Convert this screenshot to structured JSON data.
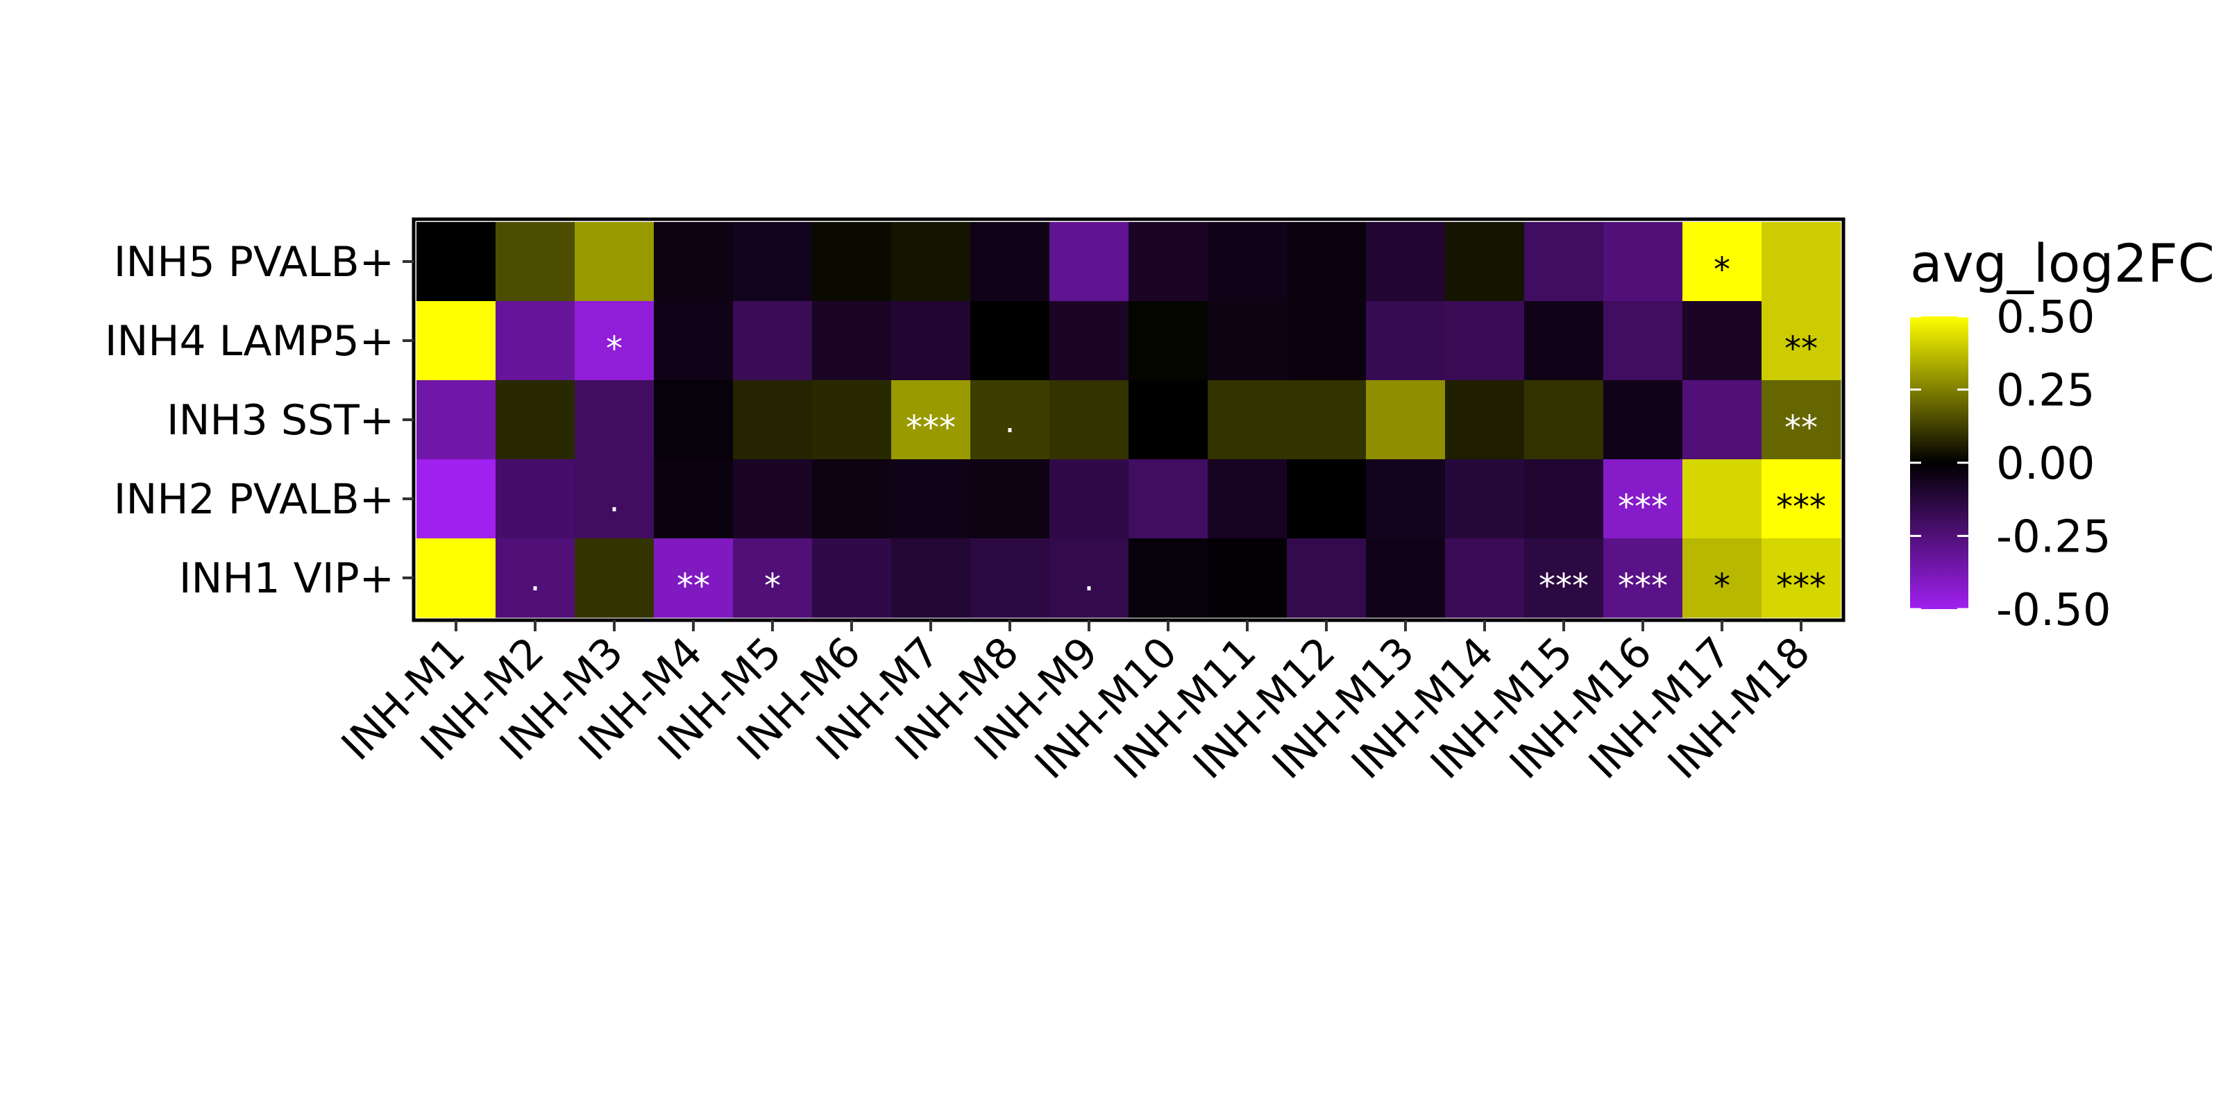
{
  "chart_data": {
    "type": "heatmap",
    "x_categories": [
      "INH-M1",
      "INH-M2",
      "INH-M3",
      "INH-M4",
      "INH-M5",
      "INH-M6",
      "INH-M7",
      "INH-M8",
      "INH-M9",
      "INH-M10",
      "INH-M11",
      "INH-M12",
      "INH-M13",
      "INH-M14",
      "INH-M15",
      "INH-M16",
      "INH-M17",
      "INH-M18"
    ],
    "y_categories": [
      "INH5 PVALB+",
      "INH4 LAMP5+",
      "INH3 SST+",
      "INH2 PVALB+",
      "INH1 VIP+"
    ],
    "values": [
      [
        0.0,
        0.15,
        0.3,
        -0.04,
        -0.06,
        0.02,
        0.04,
        -0.05,
        -0.3,
        -0.08,
        -0.05,
        -0.03,
        -0.1,
        0.04,
        -0.2,
        -0.25,
        0.52,
        0.4
      ],
      [
        0.52,
        -0.32,
        -0.45,
        -0.05,
        -0.18,
        -0.08,
        -0.1,
        0.0,
        -0.08,
        0.01,
        -0.04,
        -0.03,
        -0.17,
        -0.18,
        -0.05,
        -0.2,
        -0.08,
        0.4
      ],
      [
        -0.35,
        0.08,
        -0.2,
        -0.02,
        0.07,
        0.08,
        0.3,
        0.12,
        0.1,
        0.0,
        0.1,
        0.1,
        0.28,
        0.06,
        0.1,
        -0.05,
        -0.25,
        0.2
      ],
      [
        -0.55,
        -0.22,
        -0.2,
        -0.03,
        -0.08,
        -0.04,
        -0.05,
        -0.04,
        -0.15,
        -0.2,
        -0.07,
        0.0,
        -0.06,
        -0.12,
        -0.1,
        -0.42,
        0.42,
        0.52
      ],
      [
        0.52,
        -0.25,
        0.1,
        -0.4,
        -0.25,
        -0.15,
        -0.11,
        -0.14,
        -0.16,
        -0.02,
        -0.01,
        -0.16,
        -0.05,
        -0.18,
        -0.14,
        -0.28,
        0.36,
        0.42
      ]
    ],
    "significance": [
      [
        "",
        "",
        "",
        "",
        "",
        "",
        "",
        "",
        "",
        "",
        "",
        "",
        "",
        "",
        "",
        "",
        "*",
        ""
      ],
      [
        "",
        "",
        "*",
        "",
        "",
        "",
        "",
        "",
        "",
        "",
        "",
        "",
        "",
        "",
        "",
        "",
        "",
        "**"
      ],
      [
        "",
        "",
        "",
        "",
        "",
        "",
        "***",
        ".",
        "",
        "",
        "",
        "",
        "",
        "",
        "",
        "",
        "",
        "**"
      ],
      [
        "",
        "",
        ".",
        "",
        "",
        "",
        "",
        "",
        "",
        "",
        "",
        "",
        "",
        "",
        "",
        "***",
        "",
        "***"
      ],
      [
        "",
        ".",
        "",
        "**",
        "*",
        "",
        "",
        "",
        ".",
        "",
        "",
        "",
        "",
        "",
        "***",
        "***",
        "*",
        "***"
      ]
    ],
    "color_scale": {
      "low": "#a020f0",
      "mid": "#000000",
      "high": "#ffff00",
      "min": -0.5,
      "max": 0.5
    },
    "legend": {
      "title": "avg_log2FC",
      "ticks": [
        0.5,
        0.25,
        0,
        -0.25,
        -0.5
      ],
      "tick_labels": [
        "0.50",
        "0.25",
        "0.00",
        "-0.25",
        "-0.50"
      ],
      "placement": "right"
    }
  }
}
